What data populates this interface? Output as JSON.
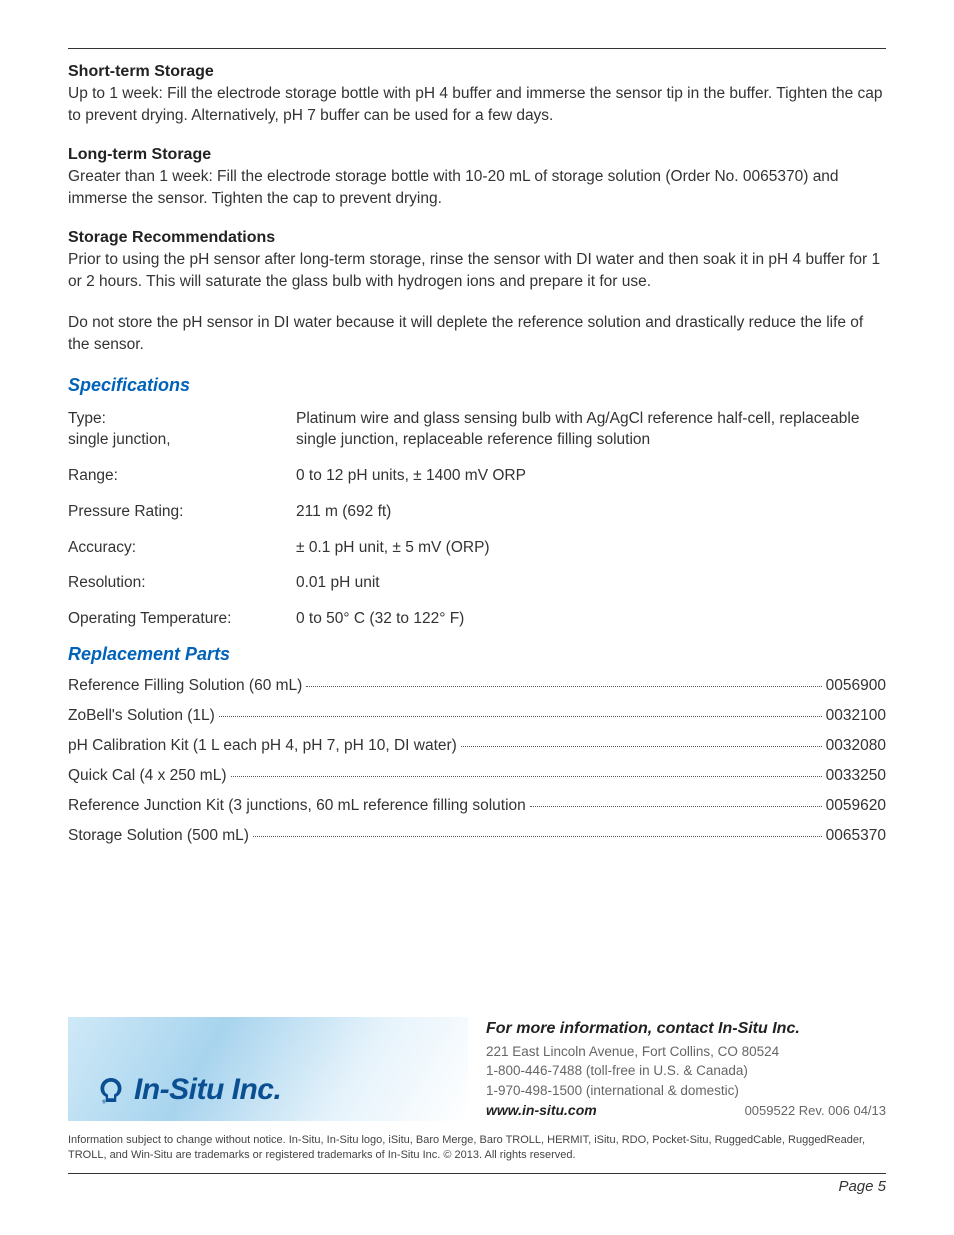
{
  "sections": {
    "short_storage": {
      "heading": "Short-term Storage",
      "body": "Up to 1 week: Fill the electrode storage bottle with pH 4 buffer and immerse the sensor tip in the buffer. Tighten the cap to prevent drying. Alternatively, pH 7 buffer can be used for a few days."
    },
    "long_storage": {
      "heading": "Long-term Storage",
      "body": "Greater than 1 week: Fill the electrode storage bottle with 10-20 mL of storage solution (Order No. 0065370) and immerse the sensor. Tighten the cap to prevent drying."
    },
    "recommendations": {
      "heading": "Storage Recommendations",
      "body1": "Prior to using the pH sensor after long-term storage, rinse the sensor with DI water and then soak it in pH 4 buffer for 1 or 2 hours. This will saturate the glass bulb with hydrogen ions and prepare it for use.",
      "body2": "Do not store the pH sensor in DI water because it will deplete the reference solution and drastically reduce the life of the sensor."
    }
  },
  "specifications": {
    "heading": "Specifications",
    "rows": [
      {
        "label": "Type:\nsingle junction,",
        "value": "Platinum wire and glass sensing bulb with Ag/AgCl reference half-cell, replaceable single junction, replaceable reference filling solution"
      },
      {
        "label": "Range:",
        "value": "0 to 12 pH units, ± 1400 mV ORP"
      },
      {
        "label": "Pressure Rating:",
        "value": "211 m (692 ft)"
      },
      {
        "label": "Accuracy:",
        "value": "± 0.1 pH unit, ± 5 mV (ORP)"
      },
      {
        "label": "Resolution:",
        "value": "0.01 pH unit"
      },
      {
        "label": "Operating Temperature:",
        "value": "0 to 50° C (32 to 122° F)"
      }
    ]
  },
  "replacement_parts": {
    "heading": "Replacement Parts",
    "rows": [
      {
        "label": "Reference Filling Solution (60 mL)",
        "number": "0056900"
      },
      {
        "label": "ZoBell's Solution (1L)",
        "number": "0032100"
      },
      {
        "label": "pH Calibration Kit (1 L each pH 4, pH 7, pH 10, DI water)",
        "number": "0032080"
      },
      {
        "label": "Quick Cal (4 x 250 mL)",
        "number": "0033250"
      },
      {
        "label": "Reference Junction Kit (3 junctions, 60 mL reference filling solution",
        "number": "0059620"
      },
      {
        "label": "Storage Solution (500 mL)",
        "number": "0065370"
      }
    ]
  },
  "footer": {
    "logo_text": "In-Situ Inc.",
    "contact_heading": "For more information, contact In-Situ Inc.",
    "address": "221 East Lincoln Avenue, Fort Collins, CO 80524",
    "phone1": "1-800-446-7488 (toll-free in U.S. & Canada)",
    "phone2": "1-970-498-1500 (international & domestic)",
    "website": "www.in-situ.com",
    "doc_rev": "0059522 Rev. 006 04/13",
    "disclaimer": "Information subject to change without notice. In-Situ, In-Situ logo, iSitu, Baro Merge, Baro TROLL, HERMIT, iSitu, RDO, Pocket-Situ, RuggedCable, RuggedReader, TROLL, and Win-Situ are trademarks or registered trademarks of In-Situ Inc. © 2013. All rights reserved."
  },
  "page_number": "Page 5"
}
